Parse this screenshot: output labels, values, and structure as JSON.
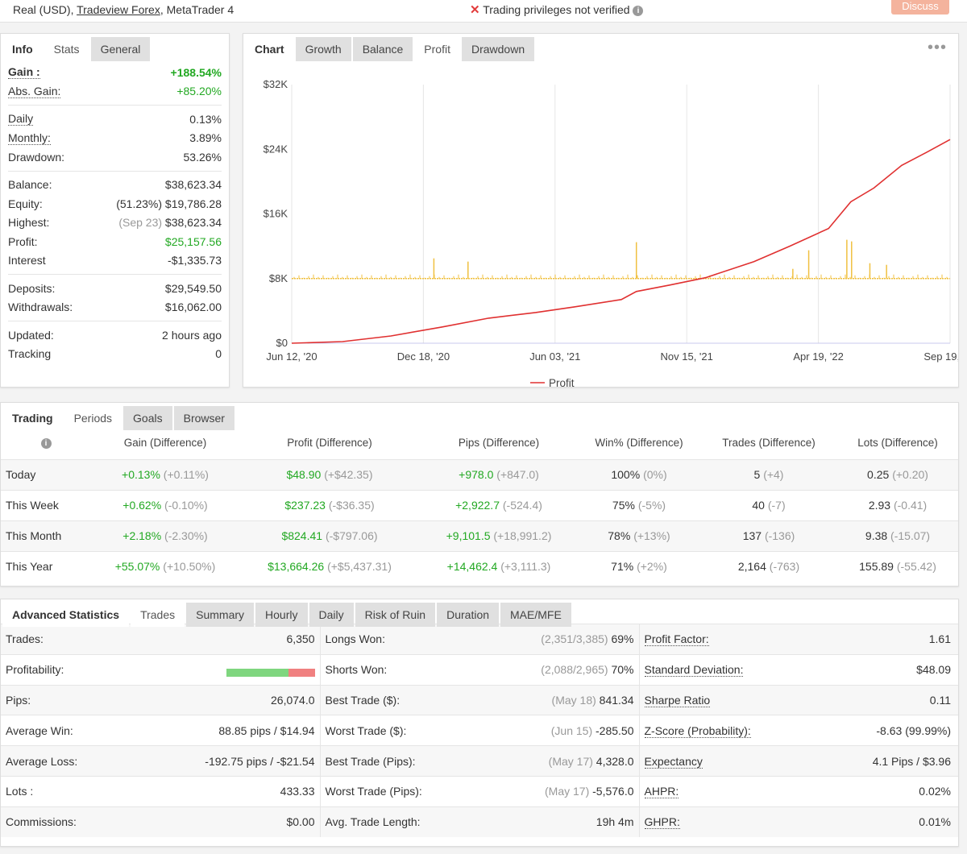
{
  "topbar": {
    "account": "Real (USD), ",
    "broker": "Tradeview Forex",
    "platform": ", MetaTrader 4",
    "privileges": "Trading privileges not verified",
    "discuss": "Discuss"
  },
  "info_tabs": [
    "Info",
    "Stats",
    "General"
  ],
  "info": {
    "gain_label": "Gain :",
    "gain": "+188.54%",
    "abs_gain_label": "Abs. Gain:",
    "abs_gain": "+85.20%",
    "daily_label": "Daily",
    "daily": "0.13%",
    "monthly_label": "Monthly:",
    "monthly": "3.89%",
    "drawdown_label": "Drawdown:",
    "drawdown": "53.26%",
    "balance_label": "Balance:",
    "balance": "$38,623.34",
    "equity_label": "Equity:",
    "equity_pct": "(51.23%)",
    "equity": "$19,786.28",
    "highest_label": "Highest:",
    "highest_date": "(Sep 23)",
    "highest": "$38,623.34",
    "profit_label": "Profit:",
    "profit": "$25,157.56",
    "interest_label": "Interest",
    "interest": "-$1,335.73",
    "deposits_label": "Deposits:",
    "deposits": "$29,549.50",
    "withdrawals_label": "Withdrawals:",
    "withdrawals": "$16,062.00",
    "updated_label": "Updated:",
    "updated": "2 hours ago",
    "tracking_label": "Tracking",
    "tracking": "0"
  },
  "chart_tabs": [
    "Chart",
    "Growth",
    "Balance",
    "Profit",
    "Drawdown"
  ],
  "chart_data": {
    "type": "line",
    "x_ticks": [
      "Jun 12, '20",
      "Dec 18, '20",
      "Jun 03, '21",
      "Nov 15, '21",
      "Apr 19, '22",
      "Sep 19, '22"
    ],
    "y_ticks": [
      "$0",
      "$8K",
      "$16K",
      "$24K",
      "$32K"
    ],
    "ylim": [
      0,
      32000
    ],
    "x_range": [
      "2020-06-12",
      "2022-09-19"
    ],
    "grid": true,
    "legend_position": "bottom",
    "series": [
      {
        "name": "Profit",
        "color": "#e03030",
        "points": [
          [
            "2020-06-12",
            0
          ],
          [
            "2020-08-15",
            200
          ],
          [
            "2020-10-15",
            900
          ],
          [
            "2020-12-18",
            2000
          ],
          [
            "2021-02-15",
            3100
          ],
          [
            "2021-04-15",
            3800
          ],
          [
            "2021-06-03",
            4500
          ],
          [
            "2021-08-01",
            5400
          ],
          [
            "2021-08-20",
            6400
          ],
          [
            "2021-10-01",
            7200
          ],
          [
            "2021-11-15",
            8100
          ],
          [
            "2022-01-15",
            10100
          ],
          [
            "2022-03-01",
            12000
          ],
          [
            "2022-04-19",
            14200
          ],
          [
            "2022-05-17",
            17500
          ],
          [
            "2022-06-15",
            19200
          ],
          [
            "2022-07-20",
            22000
          ],
          [
            "2022-08-20",
            23600
          ],
          [
            "2022-09-19",
            25200
          ]
        ]
      }
    ],
    "bars_series": {
      "color": "#f0c040",
      "baseline": 8000,
      "spikes": [
        [
          "2020-12-08",
          2500
        ],
        [
          "2021-01-20",
          2100
        ],
        [
          "2021-08-20",
          4500
        ],
        [
          "2022-03-05",
          1200
        ],
        [
          "2022-03-25",
          3500
        ],
        [
          "2022-05-12",
          4800
        ],
        [
          "2022-05-18",
          4600
        ],
        [
          "2022-06-10",
          1900
        ],
        [
          "2022-07-01",
          1700
        ]
      ]
    }
  },
  "trading_tabs": [
    "Trading",
    "Periods",
    "Goals",
    "Browser"
  ],
  "periods": {
    "headers": [
      "Gain (Difference)",
      "Profit (Difference)",
      "Pips (Difference)",
      "Win% (Difference)",
      "Trades (Difference)",
      "Lots (Difference)"
    ],
    "rows": [
      {
        "name": "Today",
        "gain": "+0.13%",
        "gain_d": "(+0.11%)",
        "profit": "$48.90",
        "profit_d": "(+$42.35)",
        "pips": "+978.0",
        "pips_d": "(+847.0)",
        "win": "100%",
        "win_d": "(0%)",
        "trades": "5",
        "trades_d": "(+4)",
        "lots": "0.25",
        "lots_d": "(+0.20)"
      },
      {
        "name": "This Week",
        "gain": "+0.62%",
        "gain_d": "(-0.10%)",
        "profit": "$237.23",
        "profit_d": "(-$36.35)",
        "pips": "+2,922.7",
        "pips_d": "(-524.4)",
        "win": "75%",
        "win_d": "(-5%)",
        "trades": "40",
        "trades_d": "(-7)",
        "lots": "2.93",
        "lots_d": "(-0.41)"
      },
      {
        "name": "This Month",
        "gain": "+2.18%",
        "gain_d": "(-2.30%)",
        "profit": "$824.41",
        "profit_d": "(-$797.06)",
        "pips": "+9,101.5",
        "pips_d": "(+18,991.2)",
        "win": "78%",
        "win_d": "(+13%)",
        "trades": "137",
        "trades_d": "(-136)",
        "lots": "9.38",
        "lots_d": "(-15.07)"
      },
      {
        "name": "This Year",
        "gain": "+55.07%",
        "gain_d": "(+10.50%)",
        "profit": "$13,664.26",
        "profit_d": "(+$5,437.31)",
        "pips": "+14,462.4",
        "pips_d": "(+3,111.3)",
        "win": "71%",
        "win_d": "(+2%)",
        "trades": "2,164",
        "trades_d": "(-763)",
        "lots": "155.89",
        "lots_d": "(-55.42)"
      }
    ]
  },
  "adv_tabs": [
    "Advanced Statistics",
    "Trades",
    "Summary",
    "Hourly",
    "Daily",
    "Risk of Ruin",
    "Duration",
    "MAE/MFE"
  ],
  "adv": {
    "profitability_win_fraction": 0.7,
    "rows": [
      {
        "l1": "Trades:",
        "v1": "6,350",
        "l2": "Longs Won:",
        "m2": "(2,351/3,385)",
        "v2": "69%",
        "l3": "Profit Factor:",
        "v3": "1.61"
      },
      {
        "l1": "Profitability:",
        "v1": "",
        "l2": "Shorts Won:",
        "m2": "(2,088/2,965)",
        "v2": "70%",
        "l3": "Standard Deviation:",
        "v3": "$48.09"
      },
      {
        "l1": "Pips:",
        "v1": "26,074.0",
        "l2": "Best Trade ($):",
        "m2": "(May 18)",
        "v2": "841.34",
        "l3": "Sharpe Ratio",
        "v3": "0.11"
      },
      {
        "l1": "Average Win:",
        "v1": "88.85 pips / $14.94",
        "l2": "Worst Trade ($):",
        "m2": "(Jun 15)",
        "v2": "-285.50",
        "l3": "Z-Score (Probability):",
        "v3": "-8.63 (99.99%)"
      },
      {
        "l1": "Average Loss:",
        "v1": "-192.75 pips / -$21.54",
        "l2": "Best Trade (Pips):",
        "m2": "(May 17)",
        "v2": "4,328.0",
        "l3": "Expectancy",
        "v3": "4.1 Pips / $3.96"
      },
      {
        "l1": "Lots :",
        "v1": "433.33",
        "l2": "Worst Trade (Pips):",
        "m2": "(May 17)",
        "v2": "-5,576.0",
        "l3": "AHPR:",
        "v3": "0.02%"
      },
      {
        "l1": "Commissions:",
        "v1": "$0.00",
        "l2": "Avg. Trade Length:",
        "m2": "",
        "v2": "19h 4m",
        "l3": "GHPR:",
        "v3": "0.01%"
      }
    ]
  }
}
